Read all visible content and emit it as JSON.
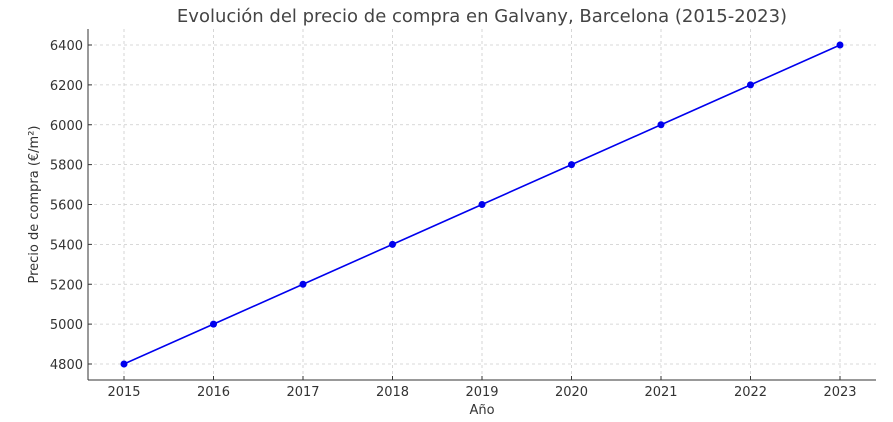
{
  "chart_data": {
    "type": "line",
    "title": "Evolución del precio de compra en Galvany, Barcelona (2015-2023)",
    "xlabel": "Año",
    "ylabel": "Precio de compra (€/m²)",
    "categories": [
      "2015",
      "2016",
      "2017",
      "2018",
      "2019",
      "2020",
      "2021",
      "2022",
      "2023"
    ],
    "series": [
      {
        "name": "Precio de compra",
        "values": [
          4800,
          5000,
          5200,
          5400,
          5600,
          5800,
          6000,
          6200,
          6400
        ],
        "color": "#0000ee"
      }
    ],
    "yticks": [
      4800,
      5000,
      5200,
      5400,
      5600,
      5800,
      6000,
      6200,
      6400
    ],
    "ylim": [
      4720,
      6480
    ],
    "grid": true,
    "legend": "none"
  }
}
